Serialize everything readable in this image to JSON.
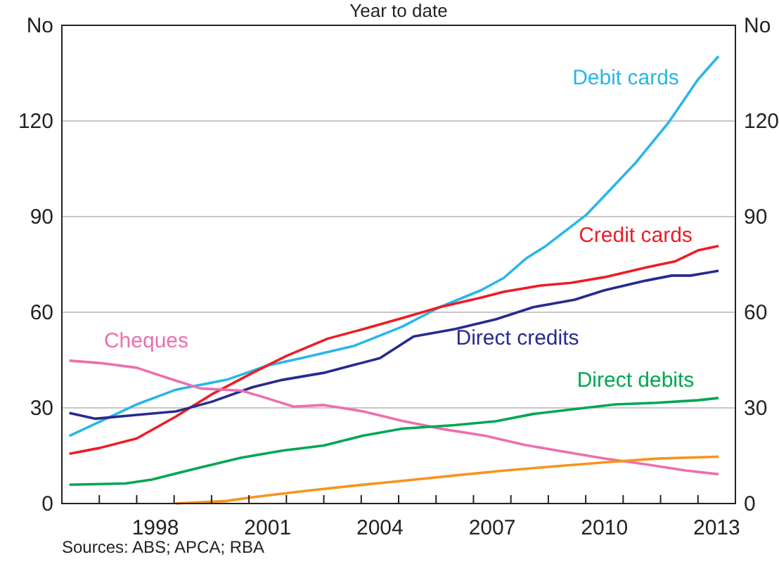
{
  "chart_data": {
    "type": "line",
    "title": "Year to date",
    "xlim": [
      1996,
      2014
    ],
    "xticks": [
      {
        "value": 1997,
        "label": null
      },
      {
        "value": 1998,
        "label": null
      },
      {
        "value": 1998.5,
        "label": "1998"
      },
      {
        "value": 1999,
        "label": null
      },
      {
        "value": 2000,
        "label": null
      },
      {
        "value": 2001,
        "label": null
      },
      {
        "value": 2001.5,
        "label": "2001"
      },
      {
        "value": 2002,
        "label": null
      },
      {
        "value": 2003,
        "label": null
      },
      {
        "value": 2004,
        "label": null
      },
      {
        "value": 2004.5,
        "label": "2004"
      },
      {
        "value": 2005,
        "label": null
      },
      {
        "value": 2006,
        "label": null
      },
      {
        "value": 2007,
        "label": null
      },
      {
        "value": 2007.5,
        "label": "2007"
      },
      {
        "value": 2008,
        "label": null
      },
      {
        "value": 2009,
        "label": null
      },
      {
        "value": 2010,
        "label": null
      },
      {
        "value": 2010.5,
        "label": "2010"
      },
      {
        "value": 2011,
        "label": null
      },
      {
        "value": 2012,
        "label": null
      },
      {
        "value": 2013,
        "label": null
      },
      {
        "value": 2013.5,
        "label": "2013"
      }
    ],
    "ylim": [
      0,
      150
    ],
    "yticks": [
      0,
      30,
      60,
      90,
      120,
      {
        "value": 150,
        "label": "No"
      }
    ],
    "y2lim": [
      0,
      150
    ],
    "y2ticks": [
      0,
      30,
      60,
      90,
      120,
      {
        "value": 150,
        "label": "No"
      }
    ],
    "grid": "y",
    "annotations": [
      "Sources: ABS; APCA; RBA"
    ],
    "series": [
      {
        "name": "Debit cards",
        "color": "#29b6e8",
        "x": [
          1996.2,
          1998.0,
          1999.05,
          2000.4,
          2001.5,
          2002.4,
          2003.8,
          2005.1,
          2006.1,
          2007.2,
          2007.8,
          2008.4,
          2008.9,
          2010.0,
          2010.5,
          2011.35,
          2012.2,
          2013.0,
          2013.55
        ],
        "values": [
          21.2,
          31.1,
          35.7,
          38.8,
          43.3,
          45.6,
          49.4,
          55.5,
          61.6,
          66.9,
          70.7,
          76.8,
          80.5,
          90.4,
          96.5,
          107.1,
          119.3,
          133,
          140.3
        ]
      },
      {
        "name": "Credit cards",
        "color": "#ee1c25",
        "x": [
          1996.2,
          1997.0,
          1998.0,
          1999.05,
          2000.0,
          2001.1,
          2002.0,
          2003.1,
          2004.05,
          2005.1,
          2006.1,
          2007.2,
          2007.8,
          2008.8,
          2009.6,
          2010.5,
          2011.6,
          2012.4,
          2013.0,
          2013.55
        ],
        "values": [
          15.6,
          17.4,
          20.4,
          27.3,
          34.2,
          41.0,
          46.3,
          51.7,
          54.7,
          58.2,
          61.6,
          64.6,
          66.4,
          68.4,
          69.2,
          71.0,
          74.0,
          76.0,
          79.4,
          80.8
        ]
      },
      {
        "name": "Direct credits",
        "color": "#262a8f",
        "x": [
          1996.2,
          1996.9,
          1998.0,
          1999.05,
          2000.0,
          2001.1,
          2001.9,
          2003.0,
          2004.5,
          2005.4,
          2006.5,
          2007.6,
          2008.6,
          2009.7,
          2010.5,
          2011.6,
          2012.3,
          2012.8,
          2013.55
        ],
        "values": [
          28.4,
          26.6,
          27.8,
          28.9,
          31.9,
          36.5,
          38.8,
          41.0,
          45.6,
          52.4,
          54.7,
          57.8,
          61.6,
          63.9,
          66.9,
          69.9,
          71.5,
          71.5,
          73.0
        ]
      },
      {
        "name": "Cheques",
        "color": "#ec6fae",
        "x": [
          1996.2,
          1997.0,
          1998.0,
          1998.8,
          1999.7,
          2000.8,
          2001.35,
          2002.2,
          2003.0,
          2004.05,
          2005.1,
          2006.2,
          2007.3,
          2008.4,
          2009.5,
          2010.5,
          2011.6,
          2012.7,
          2013.55
        ],
        "values": [
          44.8,
          44.1,
          42.6,
          39.5,
          36.1,
          35.4,
          33.5,
          30.4,
          30.9,
          28.9,
          25.9,
          23.3,
          21.3,
          18.3,
          16.1,
          14.1,
          12.3,
          10.3,
          9.2
        ]
      },
      {
        "name": "Direct debits",
        "color": "#00a651",
        "x": [
          1996.2,
          1997.7,
          1998.4,
          1999.7,
          2000.8,
          2001.9,
          2003.0,
          2004.05,
          2005.1,
          2006.5,
          2007.6,
          2008.6,
          2009.7,
          2010.8,
          2011.9,
          2013.0,
          2013.55
        ],
        "values": [
          5.9,
          6.3,
          7.5,
          11.3,
          14.4,
          16.6,
          18.2,
          21.3,
          23.5,
          24.6,
          25.8,
          28.1,
          29.6,
          31.1,
          31.6,
          32.4,
          33.1
        ]
      },
      {
        "color": "#f7941d",
        "x": [
          1999.05,
          2000.4,
          2001.1,
          2002.4,
          2003.8,
          2005.1,
          2006.5,
          2007.8,
          2009.2,
          2010.5,
          2011.9,
          2013.55
        ],
        "values": [
          0,
          0.8,
          2.0,
          3.8,
          5.6,
          7.1,
          8.8,
          10.3,
          11.7,
          12.9,
          14.1,
          14.7
        ]
      }
    ]
  }
}
